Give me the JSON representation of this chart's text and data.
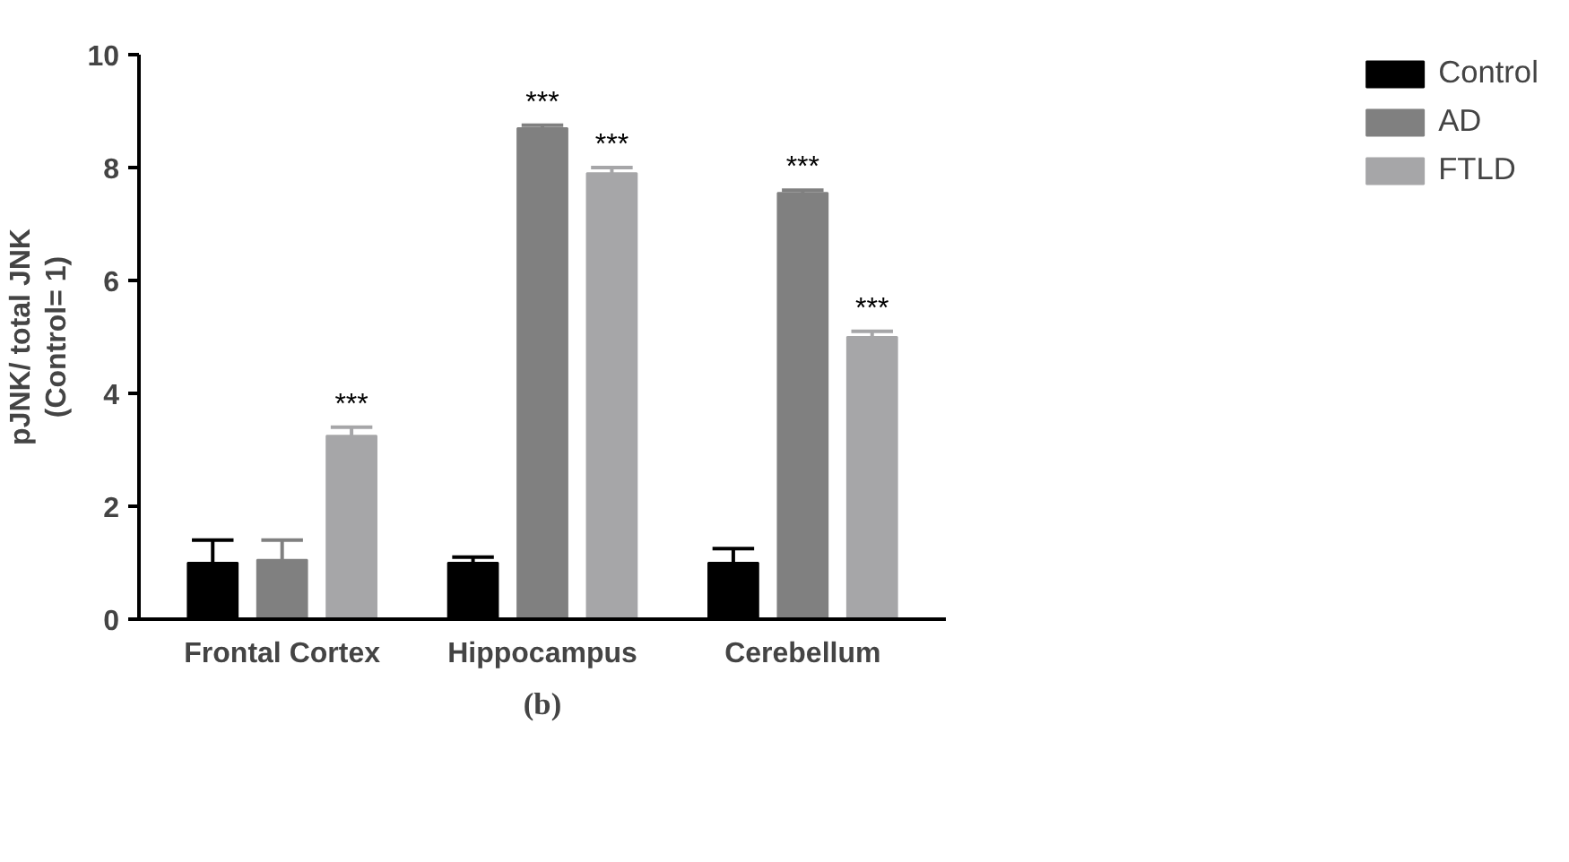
{
  "chart_data": {
    "type": "bar",
    "ylabel": "pJNK/ total JNK\n(Control= 1)",
    "categories": [
      "Frontal Cortex",
      "Hippocampus",
      "Cerebellum"
    ],
    "series": [
      {
        "name": "Control",
        "color": "#000000",
        "values": [
          1.0,
          1.0,
          1.0
        ],
        "errors": [
          [
            1.0,
            1.4
          ],
          [
            1.0,
            1.1
          ],
          [
            1.0,
            1.25
          ]
        ],
        "value_labels": [
          null,
          null,
          null
        ]
      },
      {
        "name": "AD",
        "color": "#808080",
        "values": [
          1.05,
          8.7,
          7.55
        ],
        "errors": [
          [
            1.05,
            1.4
          ],
          [
            8.7,
            8.75
          ],
          [
            7.55,
            7.6
          ]
        ],
        "value_labels": [
          null,
          "***",
          "***"
        ]
      },
      {
        "name": "FTLD",
        "color": "#a6a6a8",
        "values": [
          3.25,
          7.9,
          5.0
        ],
        "errors": [
          [
            3.25,
            3.4
          ],
          [
            7.9,
            8.0
          ],
          [
            5.0,
            5.1
          ]
        ],
        "value_labels": [
          "***",
          "***",
          "***"
        ]
      }
    ],
    "ylim": [
      0,
      10
    ],
    "yticks": [
      0,
      2,
      4,
      6,
      8,
      10
    ],
    "grid": false,
    "legend": "top right",
    "annotations": [
      "(b)"
    ]
  }
}
